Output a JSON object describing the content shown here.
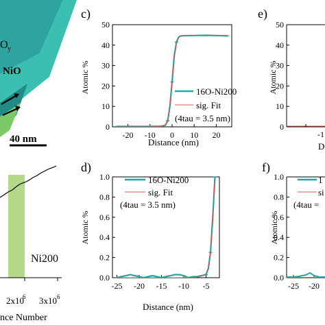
{
  "panels": {
    "b": {
      "labels": [
        "O",
        "y",
        "NiO"
      ],
      "scalebar": "40 nm"
    },
    "a": {
      "xticks": [
        "2x10",
        "6",
        "3x10",
        "6"
      ],
      "xlabel_partial": "nce Number",
      "annotation": "Ni200"
    }
  },
  "colors": {
    "teal": "#1aa8a8",
    "red": "#e05050",
    "tip": "#2fb5a8",
    "band": "#b5d98a"
  },
  "chart_data": [
    {
      "id": "c",
      "panel_label": "c)",
      "type": "line",
      "xlabel": "Distance (nm)",
      "ylabel": "Atomic %",
      "xlim": [
        -27,
        27
      ],
      "ylim": [
        0,
        50
      ],
      "xticks": [
        -20,
        -10,
        0,
        10,
        20
      ],
      "yticks": [
        0,
        10,
        20,
        30,
        40,
        50
      ],
      "legend": [
        "16O-Ni200",
        "sig. Fit",
        "(4tau = 3.5 nm)"
      ],
      "legend_position": "right",
      "series": [
        {
          "name": "16O-Ni200",
          "style": "data",
          "x": [
            -25,
            -20,
            -15,
            -10,
            -5,
            -3,
            -2,
            -1,
            0,
            1,
            2,
            3,
            4,
            5,
            10,
            15,
            20,
            25
          ],
          "y": [
            0.2,
            0.2,
            0.2,
            0.2,
            0.3,
            0.8,
            3,
            10,
            22,
            35,
            41.5,
            44,
            44.5,
            44.6,
            44.7,
            44.8,
            44.7,
            44.5
          ]
        },
        {
          "name": "sig. Fit",
          "style": "fit",
          "x": [
            -25,
            -10,
            -5,
            -3,
            -2,
            -1,
            0,
            1,
            2,
            3,
            4,
            5,
            10,
            25
          ],
          "y": [
            0,
            0,
            0.2,
            1,
            3.5,
            10,
            22,
            34,
            41,
            43.8,
            44.5,
            44.7,
            44.8,
            44.8
          ]
        }
      ]
    },
    {
      "id": "d",
      "panel_label": "d)",
      "type": "line",
      "xlabel": "Distance (nm)",
      "ylabel": "Atomic %",
      "xlim": [
        -26,
        -2
      ],
      "ylim": [
        0,
        1
      ],
      "xticks": [
        -25,
        -20,
        -15,
        -10,
        -5
      ],
      "yticks": [
        0.0,
        0.2,
        0.4,
        0.6,
        0.8,
        1.0
      ],
      "legend": [
        "16O-Ni200",
        "sig. Fit",
        "(4tau = 3.5 nm)"
      ],
      "legend_position": "top-left",
      "series": [
        {
          "name": "16O-Ni200",
          "style": "data",
          "x": [
            -25,
            -24,
            -23,
            -22,
            -21,
            -20,
            -19,
            -18,
            -17,
            -16,
            -15,
            -14,
            -13,
            -12,
            -11,
            -10,
            -9,
            -8,
            -7,
            -6,
            -5,
            -4.5,
            -4,
            -3.5,
            -3
          ],
          "y": [
            0.0,
            0.01,
            0.02,
            0.03,
            0.02,
            0.01,
            0.0,
            0.01,
            0.02,
            0.01,
            0.0,
            0.01,
            0.02,
            0.03,
            0.03,
            0.02,
            0.0,
            0.01,
            0.01,
            0.02,
            0.03,
            0.09,
            0.25,
            0.6,
            1.0
          ]
        },
        {
          "name": "sig. Fit",
          "style": "fit",
          "x": [
            -25,
            -10,
            -7,
            -6,
            -5,
            -4.5,
            -4,
            -3.5,
            -3.2,
            -3.0
          ],
          "y": [
            0.0,
            0.0,
            0.005,
            0.015,
            0.04,
            0.1,
            0.25,
            0.55,
            0.85,
            1.0
          ]
        }
      ]
    },
    {
      "id": "e",
      "panel_label": "e)",
      "type": "line",
      "ylabel": "Atomic %",
      "ylim": [
        0,
        50
      ],
      "yticks": [
        0,
        10,
        20,
        30,
        40,
        50
      ],
      "xtick_partial": "-1",
      "xlabel_partial": "D"
    },
    {
      "id": "f",
      "panel_label": "f)",
      "type": "line",
      "ylabel": "Atomic %",
      "ylim": [
        0,
        1
      ],
      "yticks": [
        0.0,
        0.2,
        0.4,
        0.6,
        0.8,
        1.0
      ],
      "xticks": [
        -25,
        -20
      ],
      "legend_partial": [
        "1",
        "si",
        "(4tau ="
      ]
    }
  ]
}
